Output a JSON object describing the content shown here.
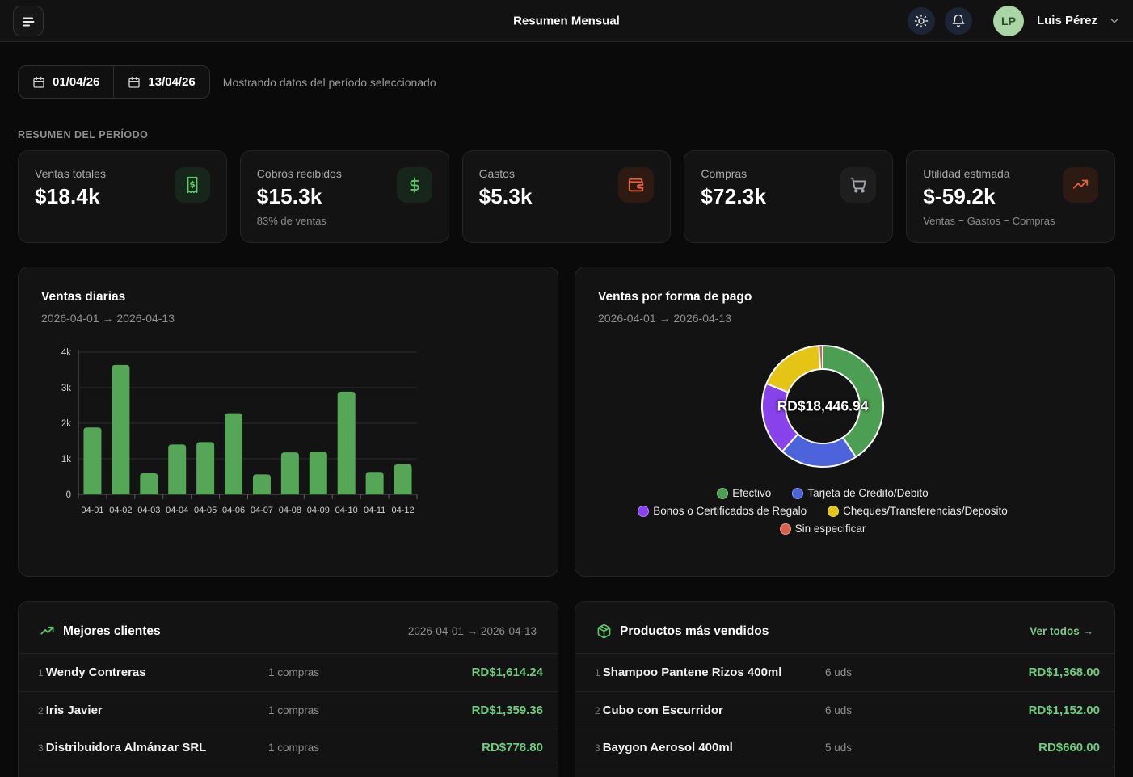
{
  "topbar": {
    "title": "Resumen Mensual",
    "user": {
      "initials": "LP",
      "name": "Luis Pérez"
    }
  },
  "filters": {
    "date_from": "01/04/26",
    "date_to": "13/04/26",
    "helper": "Mostrando datos del período seleccionado"
  },
  "summary": {
    "label": "RESUMEN DEL PERÍODO",
    "cards": [
      {
        "title": "Ventas totales",
        "value": "$18.4k",
        "icon": "receipt-icon",
        "accent": "#5ec968"
      },
      {
        "title": "Cobros recibidos",
        "value": "$15.3k",
        "subtitle": "83% de ventas",
        "icon": "dollar-icon",
        "accent": "#5ec968"
      },
      {
        "title": "Gastos",
        "value": "$5.3k",
        "icon": "wallet-icon",
        "accent": "#e0623e"
      },
      {
        "title": "Compras",
        "value": "$72.3k",
        "icon": "cart-icon",
        "accent": "#a2a7ad"
      },
      {
        "title": "Utilidad estimada",
        "value": "$-59.2k",
        "subtitle": "Ventas − Gastos − Compras",
        "icon": "trending-up-icon",
        "accent": "#e0623e"
      }
    ]
  },
  "chart_data": [
    {
      "type": "bar",
      "title": "Ventas diarias",
      "subtitle": "2026-04-01 → 2026-04-13",
      "categories": [
        "04-01",
        "04-02",
        "04-03",
        "04-04",
        "04-05",
        "04-06",
        "04-07",
        "04-08",
        "04-09",
        "04-10",
        "04-11",
        "04-12"
      ],
      "values": [
        1880,
        3640,
        590,
        1400,
        1470,
        2280,
        560,
        1180,
        1200,
        2890,
        630,
        840
      ],
      "xlabel": "",
      "ylabel": "",
      "ylim": [
        0,
        4000
      ],
      "yticks": [
        {
          "value": 0,
          "label": "0"
        },
        {
          "value": 1000,
          "label": "1k"
        },
        {
          "value": 2000,
          "label": "2k"
        },
        {
          "value": 3000,
          "label": "3k"
        },
        {
          "value": 4000,
          "label": "4k"
        }
      ],
      "bar_color": "#55a757",
      "grid": true,
      "legend_position": "none"
    },
    {
      "type": "donut",
      "title": "Ventas por forma de pago",
      "subtitle": "2026-04-01 → 2026-04-13",
      "center_label": "RD$18,446.94",
      "total": "RD$18,446.94",
      "slices": [
        {
          "label": "Efectivo",
          "percent": 40.8,
          "color": "#4c9e52"
        },
        {
          "label": "Tarjeta de Credito/Debito",
          "percent": 20.8,
          "color": "#4d63db"
        },
        {
          "label": "Bonos o Certificados de Regalo",
          "percent": 19.5,
          "color": "#8742ec"
        },
        {
          "label": "Cheques/Transferencias/Deposito",
          "percent": 17.9,
          "color": "#e4c414"
        },
        {
          "label": "Sin especificar",
          "percent": 1.0,
          "color": "#d4604d"
        }
      ],
      "legend_position": "bottom"
    }
  ],
  "clients": {
    "title": "Mejores clientes",
    "period": "2026-04-01 → 2026-04-13",
    "rows": [
      {
        "rank": "1",
        "name": "Wendy Contreras",
        "detail": "1 compras",
        "amount": "RD$1,614.24"
      },
      {
        "rank": "2",
        "name": "Iris Javier",
        "detail": "1 compras",
        "amount": "RD$1,359.36"
      },
      {
        "rank": "3",
        "name": "Distribuidora Almánzar SRL",
        "detail": "1 compras",
        "amount": "RD$778.80"
      }
    ]
  },
  "products": {
    "title": "Productos más vendidos",
    "link": "Ver todos →",
    "rows": [
      {
        "rank": "1",
        "name": "Shampoo Pantene Rizos 400ml",
        "detail": "6 uds",
        "amount": "RD$1,368.00"
      },
      {
        "rank": "2",
        "name": "Cubo con Escurridor",
        "detail": "6 uds",
        "amount": "RD$1,152.00"
      },
      {
        "rank": "3",
        "name": "Baygon Aerosol 400ml",
        "detail": "5 uds",
        "amount": "RD$660.00"
      }
    ]
  },
  "colors": {
    "page_bg": "#0a0a0a",
    "card_bg": "#131313",
    "accent_amount_green": "#6fcb7f",
    "link_green": "#7cc98b"
  }
}
